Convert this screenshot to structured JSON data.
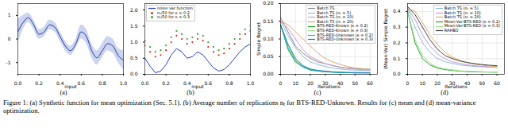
{
  "chart_data": [
    {
      "type": "line",
      "title": "(a)",
      "xlabel": "input",
      "x": [
        0,
        0.05,
        0.1,
        0.15,
        0.2,
        0.25,
        0.3,
        0.35,
        0.4,
        0.45,
        0.5,
        0.55,
        0.6,
        0.65,
        0.7,
        0.75,
        0.8,
        0.85,
        0.9,
        0.95,
        1
      ],
      "series": [
        {
          "color": "#1f3b9a",
          "values": [
            0.3,
            0.7,
            0.9,
            0.6,
            0.2,
            0.3,
            0.6,
            0.5,
            0.1,
            -0.3,
            -0.5,
            -0.2,
            0.3,
            0.1,
            -0.5,
            -0.8,
            -0.5,
            -0.2,
            -0.3,
            -0.7,
            -0.9
          ]
        }
      ],
      "band": {
        "color": "#8f9fdc",
        "lower": [
          -0.2,
          0.4,
          0.7,
          0.4,
          0.0,
          0.1,
          0.4,
          0.3,
          -0.1,
          -0.5,
          -0.7,
          -0.4,
          0.0,
          -0.2,
          -0.8,
          -1.1,
          -0.8,
          -0.5,
          -0.6,
          -1.0,
          -1.3
        ],
        "upper": [
          0.8,
          1.0,
          1.1,
          0.8,
          0.4,
          0.5,
          0.8,
          0.7,
          0.3,
          -0.1,
          -0.3,
          0.0,
          0.6,
          0.4,
          -0.2,
          -0.5,
          -0.2,
          0.1,
          0.0,
          -0.4,
          -0.5
        ]
      },
      "xlim": [
        0,
        1
      ],
      "xticks": [
        {
          "value": 0,
          "label": "0.0"
        },
        0.2,
        0.4,
        0.6,
        0.8,
        {
          "value": 1,
          "label": "1.0"
        }
      ],
      "ylim": [
        -1.5,
        1.5
      ],
      "yticks": [
        -1,
        0,
        1
      ],
      "grid": false
    },
    {
      "type": "line",
      "title": "(b)",
      "xlabel": "input",
      "legend": "upper left",
      "x": [
        0,
        0.05,
        0.1,
        0.15,
        0.2,
        0.25,
        0.3,
        0.35,
        0.4,
        0.45,
        0.5,
        0.55,
        0.6,
        0.65,
        0.7,
        0.75,
        0.8,
        0.85,
        0.9,
        0.95,
        1
      ],
      "series": [
        {
          "name": "noise var function",
          "type": "line",
          "color": "#1f3bd6",
          "values": [
            0.5,
            0.25,
            0.05,
            0.1,
            0.3,
            0.6,
            0.8,
            0.7,
            0.5,
            0.55,
            0.7,
            0.6,
            0.4,
            0.2,
            0.1,
            0.15,
            0.3,
            0.5,
            0.7,
            0.85,
            0.95
          ]
        },
        {
          "name": "nₜ/50 for κ = 0.2",
          "type": "scatter",
          "color": "#e3241b",
          "values": [
            0.9,
            0.7,
            0.55,
            0.6,
            0.75,
            1.0,
            1.2,
            1.1,
            0.95,
            1.0,
            1.1,
            1.05,
            0.85,
            0.7,
            0.6,
            0.65,
            0.8,
            0.95,
            1.1,
            1.25,
            1.35
          ]
        },
        {
          "name": "nₜ/50 for κ = 0.3",
          "type": "scatter",
          "color": "#2ca02c",
          "values": [
            1.05,
            0.85,
            0.7,
            0.75,
            0.9,
            1.15,
            1.35,
            1.25,
            1.1,
            1.15,
            1.25,
            1.2,
            1.0,
            0.85,
            0.75,
            0.8,
            0.95,
            1.1,
            1.25,
            1.4,
            1.5
          ]
        }
      ],
      "xlim": [
        0,
        1
      ],
      "xticks": [
        {
          "value": 0,
          "label": "0.0"
        },
        0.2,
        0.4,
        0.6,
        0.8,
        {
          "value": 1,
          "label": "1.0"
        }
      ],
      "ylim": [
        0,
        2.2
      ],
      "yticks": [
        {
          "value": 0,
          "label": "0.0"
        },
        0.5,
        {
          "value": 1,
          "label": "1.0"
        },
        1.5,
        {
          "value": 2,
          "label": "2.0"
        }
      ],
      "grid": false
    },
    {
      "type": "line",
      "title": "(c)",
      "xlabel": "Iterations",
      "ylabel": "Simple Regret",
      "legend": "upper right",
      "x": [
        0,
        5,
        10,
        15,
        20,
        25,
        30,
        35,
        40,
        45,
        50,
        55,
        60
      ],
      "series": [
        {
          "name": "Batch TS",
          "color": "#888888",
          "values": [
            0.16,
            0.12,
            0.08,
            0.06,
            0.045,
            0.035,
            0.03,
            0.025,
            0.02,
            0.018,
            0.016,
            0.015,
            0.014
          ]
        },
        {
          "name": "Batch TS (nₜ = 5)",
          "color": "#8fb8de",
          "values": [
            0.15,
            0.11,
            0.075,
            0.05,
            0.035,
            0.028,
            0.022,
            0.018,
            0.015,
            0.013,
            0.012,
            0.011,
            0.01
          ]
        },
        {
          "name": "Batch TS (nₜ = 10)",
          "color": "#c49bd1",
          "values": [
            0.15,
            0.13,
            0.1,
            0.07,
            0.05,
            0.04,
            0.03,
            0.025,
            0.02,
            0.017,
            0.015,
            0.013,
            0.012
          ]
        },
        {
          "name": "Batch TS (nₜ = 20)",
          "color": "#e0a96d",
          "values": [
            0.15,
            0.14,
            0.12,
            0.1,
            0.08,
            0.06,
            0.045,
            0.035,
            0.028,
            0.022,
            0.018,
            0.016,
            0.014
          ]
        },
        {
          "name": "BTS-RED-Known (κ = 0.2)",
          "color": "#2ca02c",
          "values": [
            0.14,
            0.07,
            0.035,
            0.02,
            0.012,
            0.009,
            0.007,
            0.006,
            0.005,
            0.005,
            0.004,
            0.004,
            0.004
          ]
        },
        {
          "name": "BTS-RED-Known (κ = 0.3)",
          "color": "#98df8a",
          "values": [
            0.14,
            0.08,
            0.04,
            0.022,
            0.014,
            0.01,
            0.008,
            0.007,
            0.006,
            0.005,
            0.005,
            0.004,
            0.004
          ]
        },
        {
          "name": "BTS-RED-Unknown (κ = 0.2)",
          "color": "#17becf",
          "values": [
            0.14,
            0.075,
            0.038,
            0.022,
            0.013,
            0.01,
            0.008,
            0.006,
            0.005,
            0.005,
            0.004,
            0.004,
            0.004
          ]
        },
        {
          "name": "BTS-RED-Unknown (κ = 0.3)",
          "color": "#1f77b4",
          "values": [
            0.14,
            0.085,
            0.045,
            0.025,
            0.015,
            0.011,
            0.009,
            0.007,
            0.006,
            0.005,
            0.005,
            0.005,
            0.004
          ]
        }
      ],
      "xlim": [
        0,
        65
      ],
      "xticks": [
        0,
        10,
        20,
        30,
        40,
        50,
        60
      ],
      "ylim": [
        0,
        0.2
      ],
      "yticks": [
        {
          "value": 0,
          "label": "0.00"
        },
        0.05,
        {
          "value": 0.1,
          "label": "0.10"
        },
        0.15,
        {
          "value": 0.2,
          "label": "0.20"
        }
      ],
      "grid": true
    },
    {
      "type": "line",
      "title": "(d)",
      "xlabel": "Iterations",
      "ylabel": "(Mean-Var) Simple Regret",
      "legend": "upper right",
      "x": [
        0,
        5,
        10,
        15,
        20,
        25,
        30,
        35,
        40,
        45,
        50,
        55,
        60
      ],
      "series": [
        {
          "name": "Batch TS (nₜ = 5)",
          "color": "#8fb8de",
          "values": [
            0.42,
            0.3,
            0.2,
            0.14,
            0.1,
            0.08,
            0.07,
            0.06,
            0.055,
            0.05,
            0.048,
            0.046,
            0.045
          ]
        },
        {
          "name": "Batch TS (nₜ = 10)",
          "color": "#c49bd1",
          "values": [
            0.42,
            0.35,
            0.25,
            0.18,
            0.13,
            0.1,
            0.08,
            0.07,
            0.06,
            0.055,
            0.05,
            0.048,
            0.046
          ]
        },
        {
          "name": "Batch TS (nₜ = 20)",
          "color": "#e0a96d",
          "values": [
            0.42,
            0.4,
            0.33,
            0.25,
            0.19,
            0.14,
            0.11,
            0.09,
            0.075,
            0.065,
            0.058,
            0.052,
            0.05
          ]
        },
        {
          "name": "Mean-Var-BTS-RED (κ = 0.2)",
          "color": "#2ca02c",
          "values": [
            0.4,
            0.2,
            0.1,
            0.06,
            0.04,
            0.03,
            0.025,
            0.02,
            0.018,
            0.016,
            0.015,
            0.014,
            0.013
          ]
        },
        {
          "name": "Mean-Var-BTS-RED (κ = 0.3)",
          "color": "#98df8a",
          "values": [
            0.4,
            0.22,
            0.12,
            0.07,
            0.045,
            0.035,
            0.028,
            0.022,
            0.02,
            0.018,
            0.016,
            0.015,
            0.014
          ]
        },
        {
          "name": "RAHBO",
          "color": "#444444",
          "values": [
            0.43,
            0.38,
            0.3,
            0.22,
            0.16,
            0.12,
            0.1,
            0.085,
            0.075,
            0.068,
            0.062,
            0.058,
            0.055
          ]
        }
      ],
      "xlim": [
        0,
        65
      ],
      "xticks": [
        0,
        10,
        20,
        30,
        40,
        50,
        60
      ],
      "ylim": [
        0,
        0.45
      ],
      "yticks": [
        {
          "value": 0,
          "label": "0.0"
        },
        0.1,
        0.2,
        0.3,
        0.4
      ],
      "grid": true
    }
  ],
  "caption": "Figure 1: (a) Synthetic function for mean optimization (Sec. 5.1). (b) Average number of replications nₜ for BTS-RED-Unknown. Results for (c) mean and (d) mean-variance optimization."
}
